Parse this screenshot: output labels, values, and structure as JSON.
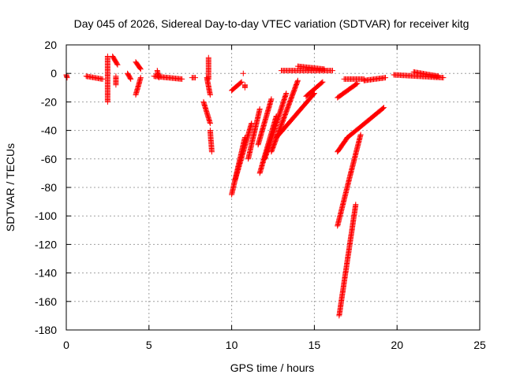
{
  "chart_data": {
    "type": "scatter",
    "title": "Day 045 of 2026, Sidereal Day-to-day VTEC variation (SDTVAR) for receiver kitg",
    "xlabel": "GPS time / hours",
    "ylabel": "SDTVAR / TECUs",
    "xlim": [
      0,
      25
    ],
    "ylim": [
      -180,
      20
    ],
    "xticks": [
      0,
      5,
      10,
      15,
      20,
      25
    ],
    "yticks": [
      20,
      0,
      -20,
      -40,
      -60,
      -80,
      -100,
      -120,
      -140,
      -160,
      -180
    ],
    "grid": true,
    "marker": "plus",
    "color": "#ff0000",
    "segments": [
      {
        "x": [
          0.0,
          0.05
        ],
        "y": [
          -1,
          -3
        ]
      },
      {
        "x": [
          1.2,
          2.2
        ],
        "y": [
          -2,
          -4
        ]
      },
      {
        "x": [
          2.5,
          2.5
        ],
        "y": [
          12,
          -20
        ]
      },
      {
        "x": [
          2.8,
          3.1
        ],
        "y": [
          12,
          6
        ]
      },
      {
        "x": [
          3.0,
          3.0
        ],
        "y": [
          -2,
          -8
        ]
      },
      {
        "x": [
          3.7,
          3.9
        ],
        "y": [
          0,
          -4
        ]
      },
      {
        "x": [
          4.2,
          4.5
        ],
        "y": [
          8,
          3
        ]
      },
      {
        "x": [
          4.5,
          4.2
        ],
        "y": [
          -3,
          -15
        ]
      },
      {
        "x": [
          5.3,
          7.0
        ],
        "y": [
          -2,
          -4
        ]
      },
      {
        "x": [
          5.5,
          5.6
        ],
        "y": [
          2,
          -3
        ]
      },
      {
        "x": [
          7.6,
          7.8
        ],
        "y": [
          -3,
          -3
        ]
      },
      {
        "x": [
          8.6,
          8.6
        ],
        "y": [
          11,
          -4
        ]
      },
      {
        "x": [
          8.5,
          8.7
        ],
        "y": [
          -3,
          -15
        ]
      },
      {
        "x": [
          8.3,
          8.7
        ],
        "y": [
          -20,
          -35
        ]
      },
      {
        "x": [
          8.7,
          8.8
        ],
        "y": [
          -40,
          -55
        ]
      },
      {
        "x": [
          10.0,
          10.6
        ],
        "y": [
          -12,
          -6
        ]
      },
      {
        "x": [
          10.7,
          10.7
        ],
        "y": [
          0,
          0
        ]
      },
      {
        "x": [
          10.8,
          10.8
        ],
        "y": [
          -8,
          -10
        ]
      },
      {
        "x": [
          10.0,
          10.8
        ],
        "y": [
          -85,
          -45
        ]
      },
      {
        "x": [
          10.2,
          11.2
        ],
        "y": [
          -75,
          -35
        ]
      },
      {
        "x": [
          11.0,
          11.7
        ],
        "y": [
          -60,
          -25
        ]
      },
      {
        "x": [
          11.6,
          12.4
        ],
        "y": [
          -50,
          -18
        ]
      },
      {
        "x": [
          11.7,
          12.7
        ],
        "y": [
          -70,
          -30
        ]
      },
      {
        "x": [
          12.0,
          13.3
        ],
        "y": [
          -60,
          -14
        ]
      },
      {
        "x": [
          12.4,
          14.0
        ],
        "y": [
          -55,
          -5
        ]
      },
      {
        "x": [
          12.7,
          15.0
        ],
        "y": [
          -45,
          -14
        ]
      },
      {
        "x": [
          14.5,
          15.5
        ],
        "y": [
          -16,
          -6
        ]
      },
      {
        "x": [
          13.0,
          16.1
        ],
        "y": [
          2,
          2
        ]
      },
      {
        "x": [
          14.0,
          15.6
        ],
        "y": [
          5,
          3
        ]
      },
      {
        "x": [
          16.4,
          17.6
        ],
        "y": [
          -17,
          -7
        ]
      },
      {
        "x": [
          16.8,
          18.0
        ],
        "y": [
          -4,
          -4
        ]
      },
      {
        "x": [
          18.0,
          19.3
        ],
        "y": [
          -5,
          -3
        ]
      },
      {
        "x": [
          16.4,
          17.0
        ],
        "y": [
          -55,
          -45
        ]
      },
      {
        "x": [
          17.0,
          19.2
        ],
        "y": [
          -45,
          -24
        ]
      },
      {
        "x": [
          16.4,
          17.2
        ],
        "y": [
          -107,
          -70
        ]
      },
      {
        "x": [
          17.2,
          17.8
        ],
        "y": [
          -70,
          -43
        ]
      },
      {
        "x": [
          16.5,
          17.5
        ],
        "y": [
          -170,
          -92
        ]
      },
      {
        "x": [
          19.8,
          22.8
        ],
        "y": [
          -1,
          -3
        ]
      },
      {
        "x": [
          21.0,
          22.5
        ],
        "y": [
          1,
          -2
        ]
      }
    ]
  }
}
